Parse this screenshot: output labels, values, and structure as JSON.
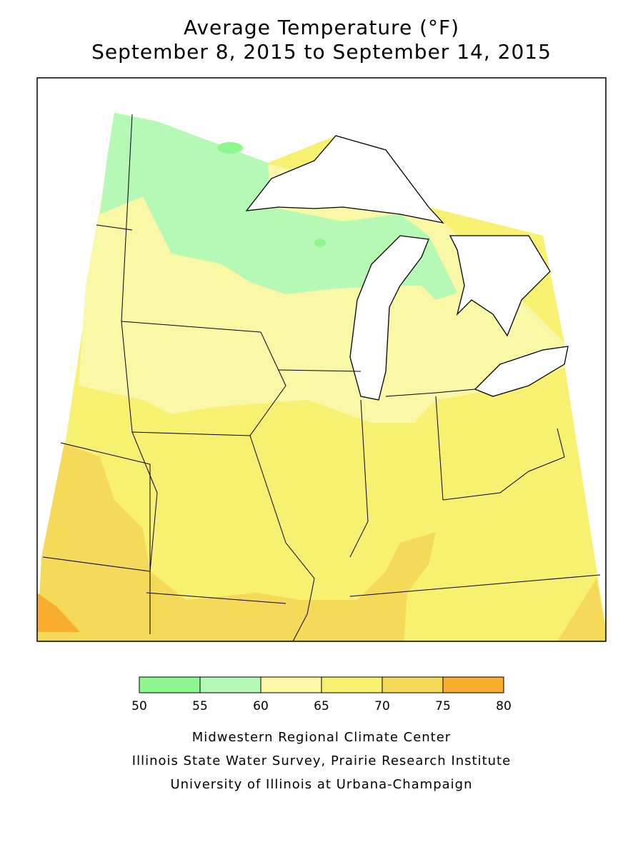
{
  "title": [
    "Average Temperature (°F)",
    "September 8, 2015 to September 14, 2015"
  ],
  "legend": {
    "ticks": [
      50,
      55,
      60,
      65,
      70,
      75,
      80
    ],
    "colors": [
      "#8ef88e",
      "#b6f8b6",
      "#f8f8a6",
      "#f8f070",
      "#f4da58",
      "#f8ae2c"
    ]
  },
  "credits": [
    "Midwestern Regional Climate Center",
    "Illinois State Water Survey, Prairie Research Institute",
    "University of Illinois at Urbana-Champaign"
  ]
}
